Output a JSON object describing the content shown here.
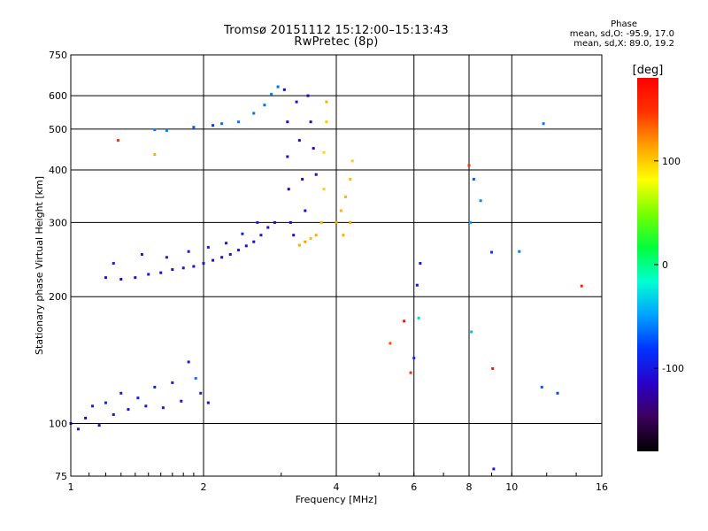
{
  "header": {
    "title": "Tromsø 20151112 15:12:00–15:13:43",
    "subtitle": "RwPretec (8p)",
    "phase_title": "Phase",
    "phase_mean_0": "mean, sd,O: -95.9, 17.0",
    "phase_mean_x": "mean, sd,X:  89.0, 19.2"
  },
  "chart_data": {
    "type": "scatter",
    "title": "Tromsø 20151112 15:12:00–15:13:43",
    "subtitle": "RwPretec (8p)",
    "xlabel": "Frequency [MHz]",
    "ylabel": "Stationary phase Virtual Height [km]",
    "x_scale": "log",
    "y_scale": "log",
    "xlim": [
      1,
      16
    ],
    "ylim": [
      75,
      750
    ],
    "x_ticks": [
      1,
      2,
      4,
      6,
      8,
      10,
      16
    ],
    "x_tick_labels": [
      "1",
      "2",
      "4",
      "6",
      "8",
      "10",
      "16"
    ],
    "y_ticks": [
      75,
      100,
      200,
      300,
      400,
      500,
      600,
      750
    ],
    "y_tick_labels": [
      "75",
      "100",
      "200",
      "300",
      "400",
      "500",
      "600",
      "750"
    ],
    "grid": true,
    "colorbar": {
      "label": "[deg]",
      "range": [
        -180,
        180
      ],
      "ticks": [
        -100,
        0,
        100
      ],
      "tick_labels": [
        "-100",
        "0",
        "100"
      ],
      "colors": [
        "#000000",
        "#3c005a",
        "#2a00c8",
        "#0032ff",
        "#00a0ff",
        "#00ffd2",
        "#00ff3c",
        "#78ff00",
        "#ffff00",
        "#ffa000",
        "#ff3200",
        "#ff0000"
      ]
    },
    "series": [
      {
        "points": [
          [
            1.0,
            100,
            -105
          ],
          [
            1.04,
            97,
            -100
          ],
          [
            1.08,
            103,
            -110
          ],
          [
            1.12,
            110,
            -95
          ],
          [
            1.16,
            99,
            -108
          ],
          [
            1.2,
            112,
            -90
          ],
          [
            1.25,
            105,
            -100
          ],
          [
            1.3,
            118,
            -96
          ],
          [
            1.35,
            108,
            -105
          ],
          [
            1.42,
            115,
            -92
          ],
          [
            1.48,
            110,
            -102
          ],
          [
            1.55,
            122,
            -88
          ],
          [
            1.62,
            109,
            -98
          ],
          [
            1.7,
            125,
            -94
          ],
          [
            1.78,
            113,
            -104
          ],
          [
            1.85,
            140,
            -100
          ],
          [
            1.92,
            128,
            -60
          ],
          [
            1.97,
            118,
            -95
          ],
          [
            2.05,
            112,
            -102
          ],
          [
            1.2,
            222,
            -105
          ],
          [
            1.3,
            220,
            -110
          ],
          [
            1.4,
            222,
            -108
          ],
          [
            1.5,
            226,
            -104
          ],
          [
            1.6,
            228,
            -110
          ],
          [
            1.7,
            232,
            -106
          ],
          [
            1.8,
            234,
            -100
          ],
          [
            1.9,
            236,
            -104
          ],
          [
            2.0,
            240,
            -100
          ],
          [
            2.1,
            244,
            -106
          ],
          [
            2.2,
            248,
            -110
          ],
          [
            2.3,
            252,
            -104
          ],
          [
            2.4,
            258,
            -100
          ],
          [
            2.5,
            264,
            -106
          ],
          [
            2.6,
            270,
            -108
          ],
          [
            2.7,
            280,
            -100
          ],
          [
            2.8,
            292,
            -104
          ],
          [
            2.9,
            300,
            -110
          ],
          [
            1.25,
            240,
            -95
          ],
          [
            1.45,
            252,
            -98
          ],
          [
            1.65,
            248,
            -96
          ],
          [
            1.85,
            256,
            -100
          ],
          [
            2.05,
            262,
            -92
          ],
          [
            2.25,
            268,
            -98
          ],
          [
            2.45,
            282,
            -94
          ],
          [
            2.65,
            300,
            -96
          ],
          [
            1.55,
            498,
            -60
          ],
          [
            1.65,
            496,
            -58
          ],
          [
            1.9,
            505,
            -70
          ],
          [
            2.1,
            510,
            -80
          ],
          [
            2.2,
            515,
            -65
          ],
          [
            2.4,
            520,
            -60
          ],
          [
            2.6,
            545,
            -62
          ],
          [
            2.75,
            570,
            -64
          ],
          [
            2.85,
            605,
            -60
          ],
          [
            2.95,
            630,
            -65
          ],
          [
            3.05,
            620,
            -110
          ],
          [
            3.1,
            520,
            -112
          ],
          [
            3.1,
            430,
            -108
          ],
          [
            3.12,
            360,
            -115
          ],
          [
            3.15,
            300,
            -110
          ],
          [
            3.2,
            280,
            -108
          ],
          [
            3.25,
            580,
            -105
          ],
          [
            3.3,
            470,
            -110
          ],
          [
            3.35,
            380,
            -112
          ],
          [
            3.4,
            320,
            -108
          ],
          [
            3.45,
            600,
            -120
          ],
          [
            3.5,
            520,
            -118
          ],
          [
            3.55,
            450,
            -122
          ],
          [
            3.6,
            390,
            -115
          ],
          [
            3.3,
            265,
            110
          ],
          [
            3.4,
            270,
            115
          ],
          [
            3.5,
            275,
            105
          ],
          [
            3.6,
            280,
            110
          ],
          [
            3.7,
            300,
            108
          ],
          [
            3.75,
            360,
            100
          ],
          [
            3.75,
            440,
            95
          ],
          [
            3.8,
            520,
            100
          ],
          [
            3.8,
            580,
            110
          ],
          [
            4.0,
            300,
            112
          ],
          [
            4.1,
            320,
            108
          ],
          [
            4.2,
            345,
            106
          ],
          [
            4.3,
            380,
            104
          ],
          [
            4.35,
            420,
            100
          ],
          [
            4.3,
            300,
            115
          ],
          [
            4.15,
            280,
            110
          ],
          [
            1.28,
            470,
            150
          ],
          [
            1.55,
            435,
            110
          ],
          [
            5.3,
            155,
            140
          ],
          [
            5.7,
            175,
            170
          ],
          [
            5.9,
            132,
            150
          ],
          [
            6.1,
            213,
            -105
          ],
          [
            6.2,
            240,
            -100
          ],
          [
            6.15,
            178,
            -30
          ],
          [
            6.0,
            143,
            -90
          ],
          [
            8.0,
            410,
            150
          ],
          [
            8.05,
            300,
            -50
          ],
          [
            8.1,
            165,
            -40
          ],
          [
            8.2,
            380,
            -70
          ],
          [
            8.5,
            338,
            -55
          ],
          [
            9.0,
            255,
            -80
          ],
          [
            9.05,
            135,
            160
          ],
          [
            9.1,
            78,
            -100
          ],
          [
            10.4,
            256,
            -60
          ],
          [
            11.8,
            515,
            -60
          ],
          [
            11.7,
            122,
            -70
          ],
          [
            12.7,
            118,
            -75
          ],
          [
            14.4,
            212,
            160
          ]
        ]
      }
    ]
  }
}
